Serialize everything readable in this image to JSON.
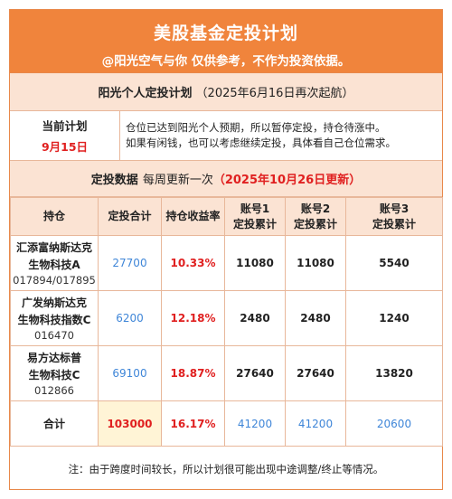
{
  "header": {
    "title": "美股基金定投计划",
    "subtitle": "@阳光空气与你   仅供参考，不作为投资依据。"
  },
  "plan": {
    "name": "阳光个人定投计划",
    "note": "（2025年6月16日再次起航）"
  },
  "status": {
    "label": "当前计划",
    "date": "9月15日",
    "line1": "仓位已达到阳光个人预期，所以暂停定投，持仓待涨中。",
    "line2": "如果有闲钱，也可以考虑继续定投，具体看自己仓位需求。"
  },
  "data_section": {
    "label": "定投数据",
    "freq": "每周更新一次",
    "update": "（2025年10月26日更新）"
  },
  "table": {
    "headers": {
      "holding": "持仓",
      "total": "定投合计",
      "return": "持仓收益率",
      "acc1_a": "账号1",
      "acc1_b": "定投累计",
      "acc2_a": "账号2",
      "acc2_b": "定投累计",
      "acc3_a": "账号3",
      "acc3_b": "定投累计"
    },
    "rows": [
      {
        "name1": "汇添富纳斯达克",
        "name2": "生物科技A",
        "code": "017894/017895",
        "total": "27700",
        "return": "10.33%",
        "acc1": "11080",
        "acc2": "11080",
        "acc3": "5540"
      },
      {
        "name1": "广发纳斯达克",
        "name2": "生物科技指数C",
        "code": "016470",
        "total": "6200",
        "return": "12.18%",
        "acc1": "2480",
        "acc2": "2480",
        "acc3": "1240"
      },
      {
        "name1": "易方达标普",
        "name2": "生物科技C",
        "code": "012866",
        "total": "69100",
        "return": "18.87%",
        "acc1": "27640",
        "acc2": "27640",
        "acc3": "13820"
      }
    ],
    "total_row": {
      "label": "合计",
      "total": "103000",
      "return": "16.17%",
      "acc1": "41200",
      "acc2": "41200",
      "acc3": "20600"
    }
  },
  "footer_note": "注：由于跨度时间较长，所以计划很可能出现中途调整/终止等情况。"
}
